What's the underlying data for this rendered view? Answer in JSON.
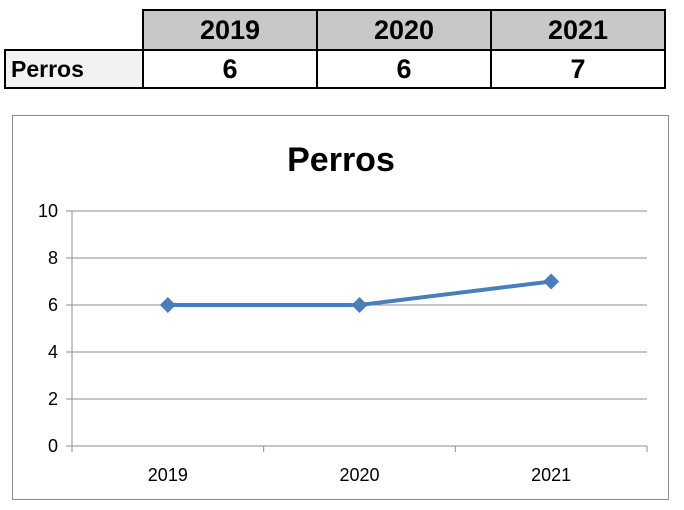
{
  "table": {
    "years": [
      "2019",
      "2020",
      "2021"
    ],
    "row_label": "Perros",
    "values": [
      "6",
      "6",
      "7"
    ]
  },
  "chart_data": {
    "type": "line",
    "title": "Perros",
    "categories": [
      "2019",
      "2020",
      "2021"
    ],
    "series": [
      {
        "values": [
          6,
          6,
          7
        ],
        "color": "#4a7ebb"
      }
    ],
    "ylim": [
      0,
      10
    ],
    "yticks": [
      "0",
      "2",
      "4",
      "6",
      "8",
      "10"
    ],
    "grid": true,
    "legend": "none",
    "marker": "diamond"
  }
}
